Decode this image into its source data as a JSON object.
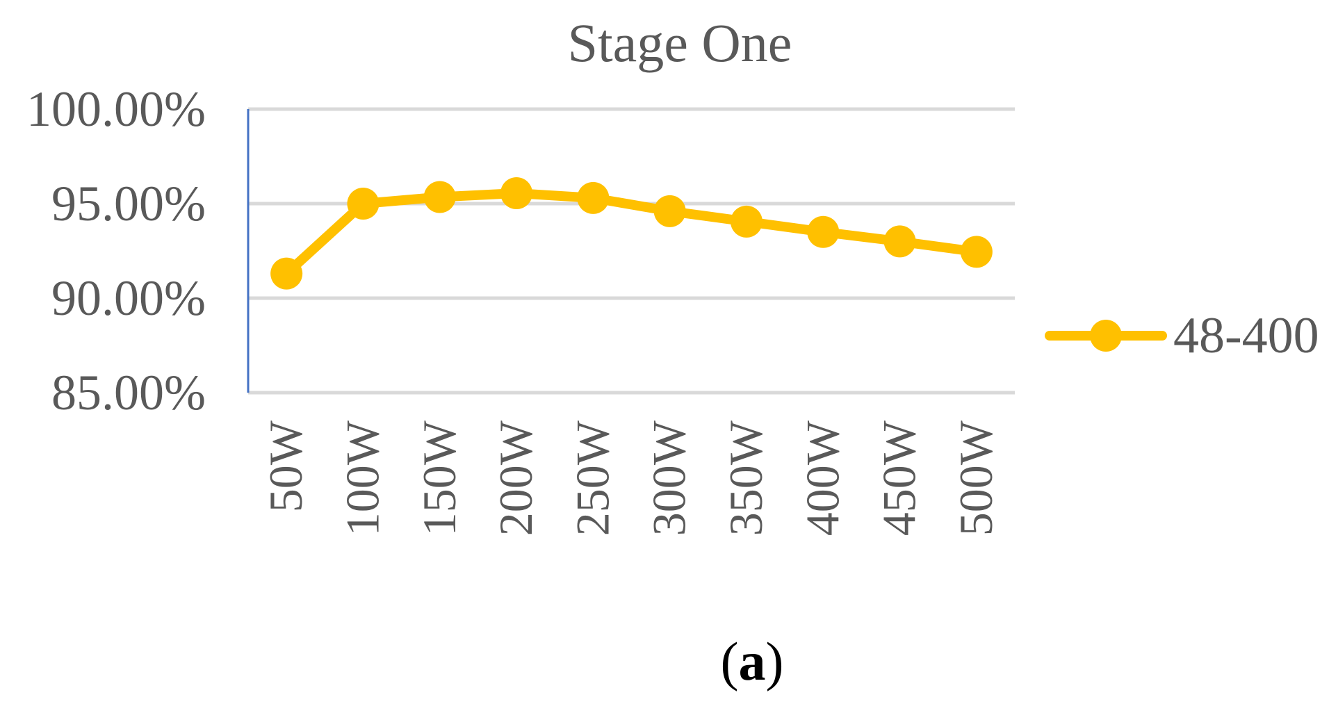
{
  "chart_data": {
    "type": "line",
    "title": "Stage One",
    "xlabel": "",
    "ylabel": "",
    "categories": [
      "50W",
      "100W",
      "150W",
      "200W",
      "250W",
      "300W",
      "350W",
      "400W",
      "450W",
      "500W"
    ],
    "series": [
      {
        "name": "48-400",
        "values": [
          91.3,
          95.0,
          95.35,
          95.55,
          95.3,
          94.6,
          94.05,
          93.5,
          93.0,
          92.45
        ]
      }
    ],
    "ylim": [
      85,
      100
    ],
    "yticks": [
      85,
      90,
      95,
      100
    ],
    "ytick_labels": [
      "85.00%",
      "90.00%",
      "95.00%",
      "100.00%"
    ],
    "grid": true,
    "legend_position": "right",
    "colors": {
      "series": "#FFC000",
      "grid": "#D9D9D9",
      "axis": "#4472C4",
      "text": "#595959"
    }
  },
  "panel_label": {
    "open": "(",
    "letter": "a",
    "close": ")"
  }
}
